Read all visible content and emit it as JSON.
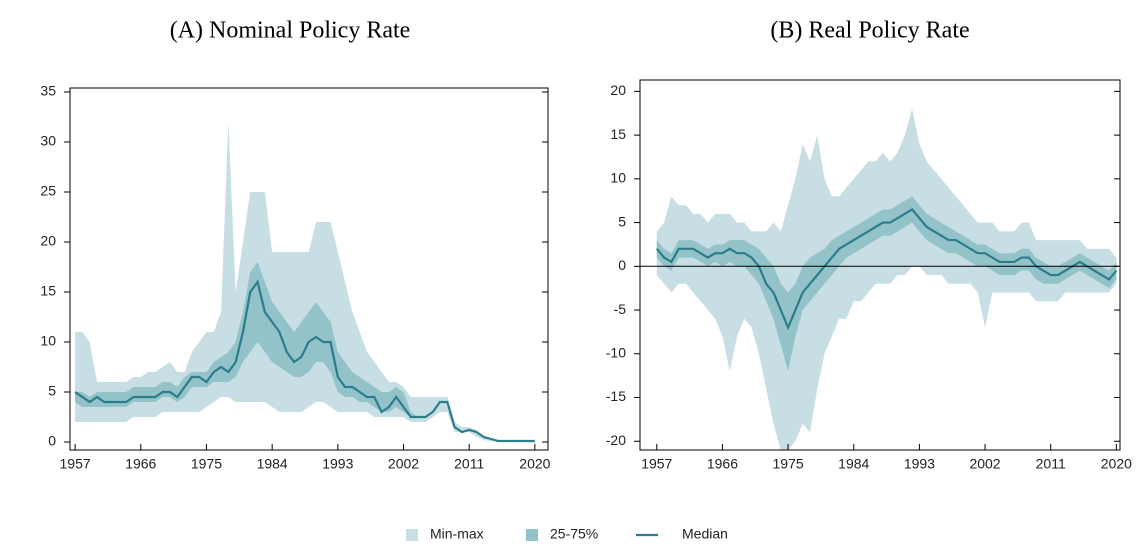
{
  "chart_data": [
    {
      "type": "band-line",
      "title": "(A) Nominal Policy Rate",
      "x": [
        1957,
        1958,
        1959,
        1960,
        1961,
        1962,
        1963,
        1964,
        1965,
        1966,
        1967,
        1968,
        1969,
        1970,
        1971,
        1972,
        1973,
        1974,
        1975,
        1976,
        1977,
        1978,
        1979,
        1980,
        1981,
        1982,
        1983,
        1984,
        1985,
        1986,
        1987,
        1988,
        1989,
        1990,
        1991,
        1992,
        1993,
        1994,
        1995,
        1996,
        1997,
        1998,
        1999,
        2000,
        2001,
        2002,
        2003,
        2004,
        2005,
        2006,
        2007,
        2008,
        2009,
        2010,
        2011,
        2012,
        2013,
        2014,
        2015,
        2016,
        2017,
        2018,
        2019,
        2020
      ],
      "xlim": [
        1956.3,
        2021.8
      ],
      "xticks": [
        1957,
        1966,
        1975,
        1984,
        1993,
        2002,
        2011,
        2020
      ],
      "ylim": [
        -0.8,
        35.4
      ],
      "yticks": [
        0,
        5,
        10,
        15,
        20,
        25,
        30,
        35
      ],
      "series": [
        {
          "name": "Min-max",
          "color": "#c7dee4",
          "lower": [
            2,
            2,
            2,
            2,
            2,
            2,
            2,
            2,
            2.5,
            2.5,
            2.5,
            2.5,
            3,
            3,
            3,
            3,
            3,
            3,
            3.5,
            4,
            4.5,
            4.5,
            4,
            4,
            4,
            4,
            4,
            3.5,
            3,
            3,
            3,
            3,
            3.5,
            4,
            4,
            3.5,
            3,
            3,
            3,
            3,
            3,
            2.5,
            2.5,
            2.5,
            2.5,
            2.5,
            2,
            2,
            2,
            2.5,
            3,
            3,
            1,
            1,
            1,
            0.5,
            0.2,
            0.1,
            0,
            0,
            0,
            0,
            0,
            0
          ],
          "upper": [
            11,
            11,
            10,
            6,
            6,
            6,
            6,
            6,
            6.5,
            6.5,
            7,
            7,
            7.5,
            8,
            7,
            7,
            9,
            10,
            11,
            11,
            13,
            32,
            15,
            20,
            25,
            25,
            25,
            19,
            19,
            19,
            19,
            19,
            19,
            22,
            22,
            22,
            19,
            16,
            13,
            11,
            9,
            8,
            7,
            6,
            6,
            5.5,
            4.5,
            4.5,
            4.5,
            4.5,
            4.5,
            4.5,
            2,
            1.5,
            1.5,
            1.2,
            0.5,
            0.3,
            0.1,
            0.1,
            0.1,
            0.1,
            0.1,
            0.1
          ]
        },
        {
          "name": "25-75%",
          "color": "#93c2c9",
          "lower": [
            4,
            3.5,
            3.5,
            3.5,
            3.5,
            3.5,
            3.5,
            3.5,
            4,
            4,
            4,
            4,
            4.5,
            4.5,
            4,
            4.5,
            5.5,
            5.5,
            5.5,
            6,
            6,
            6,
            6.5,
            8,
            9,
            10,
            9,
            8,
            7.5,
            7,
            6.5,
            6.5,
            7,
            8,
            8,
            7,
            5,
            4.5,
            4.5,
            4,
            4,
            3.5,
            3,
            3,
            3.5,
            3,
            2.5,
            2.5,
            2.5,
            3,
            4,
            4,
            1.5,
            1,
            1.2,
            1,
            0.5,
            0.3,
            0.1,
            0.1,
            0.1,
            0.1,
            0.1,
            0.1
          ],
          "upper": [
            5,
            5,
            4.5,
            5,
            5,
            5,
            5,
            5,
            5.5,
            5.5,
            5.5,
            5.5,
            6,
            6,
            5.5,
            6.5,
            7,
            7,
            7,
            8,
            8.5,
            9,
            10,
            13,
            17,
            18,
            16,
            14,
            13,
            12,
            11,
            12,
            13,
            14,
            13,
            12,
            9,
            8,
            7,
            6.5,
            6,
            5.5,
            5,
            5,
            5.5,
            5,
            3,
            2.5,
            2.5,
            3,
            4,
            4,
            1.5,
            1,
            1.2,
            1,
            0.5,
            0.3,
            0.1,
            0.1,
            0.1,
            0.1,
            0.1,
            0.1
          ]
        },
        {
          "name": "Median",
          "color": "#2b7d8c",
          "values": [
            5,
            4.5,
            4,
            4.5,
            4,
            4,
            4,
            4,
            4.5,
            4.5,
            4.5,
            4.5,
            5,
            5,
            4.5,
            5.5,
            6.5,
            6.5,
            6,
            7,
            7.5,
            7,
            8,
            11,
            15,
            16,
            13,
            12,
            11,
            9,
            8,
            8.5,
            10,
            10.5,
            10,
            10,
            6.5,
            5.5,
            5.5,
            5,
            4.5,
            4.5,
            3,
            3.5,
            4.5,
            3.5,
            2.5,
            2.5,
            2.5,
            3,
            4,
            4,
            1.5,
            1,
            1.2,
            1,
            0.5,
            0.3,
            0.1,
            0.1,
            0.1,
            0.1,
            0.1,
            0.1
          ]
        }
      ]
    },
    {
      "type": "band-line",
      "title": "(B) Real Policy Rate",
      "x": [
        1957,
        1958,
        1959,
        1960,
        1961,
        1962,
        1963,
        1964,
        1965,
        1966,
        1967,
        1968,
        1969,
        1970,
        1971,
        1972,
        1973,
        1974,
        1975,
        1976,
        1977,
        1978,
        1979,
        1980,
        1981,
        1982,
        1983,
        1984,
        1985,
        1986,
        1987,
        1988,
        1989,
        1990,
        1991,
        1992,
        1993,
        1994,
        1995,
        1996,
        1997,
        1998,
        1999,
        2000,
        2001,
        2002,
        2003,
        2004,
        2005,
        2006,
        2007,
        2008,
        2009,
        2010,
        2011,
        2012,
        2013,
        2014,
        2015,
        2016,
        2017,
        2018,
        2019,
        2020
      ],
      "xlim": [
        1954.7,
        2020.5
      ],
      "xticks": [
        1957,
        1966,
        1975,
        1984,
        1993,
        2002,
        2011,
        2020
      ],
      "ylim": [
        -21,
        21.3
      ],
      "yticks": [
        -20,
        -15,
        -10,
        -5,
        0,
        5,
        10,
        15,
        20
      ],
      "hline": 0,
      "series": [
        {
          "color": "#c7dee4",
          "lower": [
            -1,
            -2,
            -3,
            -2,
            -2,
            -3,
            -4,
            -5,
            -6,
            -8,
            -12,
            -8,
            -6,
            -7,
            -10,
            -14,
            -18,
            -21,
            -21,
            -20,
            -18,
            -19,
            -14,
            -10,
            -8,
            -6,
            -6,
            -4,
            -4,
            -3,
            -2,
            -2,
            -2,
            -1,
            -1,
            0,
            0,
            -1,
            -1,
            -1,
            -2,
            -2,
            -2,
            -2,
            -3,
            -7,
            -3,
            -3,
            -3,
            -3,
            -3,
            -3,
            -4,
            -4,
            -4,
            -4,
            -3,
            -3,
            -3,
            -3,
            -3,
            -3,
            -3,
            -2
          ],
          "upper": [
            4,
            5,
            8,
            7,
            7,
            6,
            6,
            5,
            6,
            6,
            6,
            5,
            5,
            4,
            4,
            4,
            5,
            4,
            7,
            10,
            14,
            12,
            15,
            10,
            8,
            8,
            9,
            10,
            11,
            12,
            12,
            13,
            12,
            13,
            15,
            18,
            14,
            12,
            11,
            10,
            9,
            8,
            7,
            6,
            5,
            5,
            5,
            4,
            4,
            4,
            5,
            5,
            3,
            3,
            3,
            3,
            3,
            3,
            3,
            2,
            2,
            2,
            2,
            1
          ]
        },
        {
          "color": "#93c2c9",
          "lower": [
            1,
            0,
            -0.5,
            1,
            1,
            1,
            0.5,
            0,
            0.5,
            0,
            0.5,
            0,
            0,
            -1,
            -2,
            -4,
            -6,
            -9,
            -12,
            -8,
            -5,
            -4,
            -3,
            -2,
            -1,
            0,
            1,
            1.5,
            2,
            2.5,
            3,
            3.5,
            3.5,
            4,
            4.5,
            5,
            4,
            3,
            2.5,
            2,
            1.5,
            1.5,
            1,
            0.5,
            0,
            0,
            -0.5,
            -1,
            -1,
            -1,
            -0.5,
            -0.5,
            -1.5,
            -2,
            -2,
            -2,
            -1.5,
            -1,
            -0.5,
            -1,
            -1.5,
            -2,
            -2.5,
            -1.5
          ],
          "upper": [
            3,
            2,
            1.5,
            3,
            3,
            3,
            2.5,
            2,
            2.5,
            2.5,
            3,
            3,
            3,
            2.5,
            2,
            1,
            0,
            -2,
            -3,
            -2,
            0,
            1,
            1.5,
            2,
            3,
            3.5,
            4,
            4.5,
            5,
            5.5,
            6,
            6.5,
            6.5,
            7,
            7.5,
            8,
            7,
            6,
            5.5,
            5,
            4.5,
            4,
            3.5,
            3,
            2.5,
            2.5,
            2,
            1.5,
            1.5,
            1.5,
            2,
            2,
            1,
            0.5,
            0,
            0,
            0.5,
            1,
            1.5,
            1,
            0.5,
            0,
            -0.5,
            0.5
          ]
        },
        {
          "color": "#2b7d8c",
          "values": [
            2,
            1,
            0.5,
            2,
            2,
            2,
            1.5,
            1,
            1.5,
            1.5,
            2,
            1.5,
            1.5,
            1,
            0,
            -2,
            -3,
            -5,
            -7,
            -5,
            -3,
            -2,
            -1,
            0,
            1,
            2,
            2.5,
            3,
            3.5,
            4,
            4.5,
            5,
            5,
            5.5,
            6,
            6.5,
            5.5,
            4.5,
            4,
            3.5,
            3,
            3,
            2.5,
            2,
            1.5,
            1.5,
            1,
            0.5,
            0.5,
            0.5,
            1,
            1,
            0,
            -0.5,
            -1,
            -1,
            -0.5,
            0,
            0.5,
            0,
            -0.5,
            -1,
            -1.5,
            -0.5
          ]
        }
      ]
    }
  ]
}
